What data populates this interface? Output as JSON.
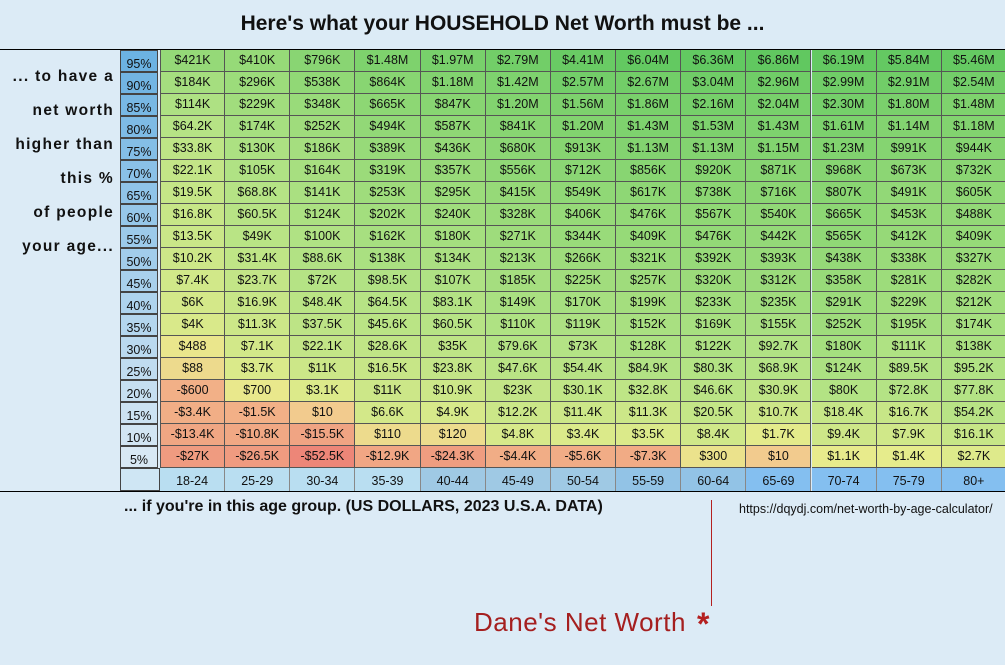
{
  "title": "Here's what your HOUSEHOLD Net Worth must be ...",
  "left_label": [
    "... to have a",
    "net worth",
    "higher than",
    "this %",
    "of people",
    "your age..."
  ],
  "bottom_label": "... if you're in this age group. (US DOLLARS, 2023 U.S.A. DATA)",
  "source": "https://dqydj.com/net-worth-by-age-calculator/",
  "marker": {
    "label": "Dane's Net Worth",
    "symbol": "*",
    "age_group": "60-64",
    "color": "#b42020"
  },
  "chart_data": {
    "type": "table",
    "title": "Here's what your HOUSEHOLD Net Worth must be ...",
    "columns": [
      "18-24",
      "25-29",
      "30-34",
      "35-39",
      "40-44",
      "45-49",
      "50-54",
      "55-59",
      "60-64",
      "65-69",
      "70-74",
      "75-79",
      "80+"
    ],
    "rows": [
      {
        "pct": "95%",
        "values": [
          "$421K",
          "$410K",
          "$796K",
          "$1.48M",
          "$1.97M",
          "$2.79M",
          "$4.41M",
          "$6.04M",
          "$6.36M",
          "$6.86M",
          "$6.19M",
          "$5.84M",
          "$5.46M"
        ]
      },
      {
        "pct": "90%",
        "values": [
          "$184K",
          "$296K",
          "$538K",
          "$864K",
          "$1.18M",
          "$1.42M",
          "$2.57M",
          "$2.67M",
          "$3.04M",
          "$2.96M",
          "$2.99M",
          "$2.91M",
          "$2.54M"
        ]
      },
      {
        "pct": "85%",
        "values": [
          "$114K",
          "$229K",
          "$348K",
          "$665K",
          "$847K",
          "$1.20M",
          "$1.56M",
          "$1.86M",
          "$2.16M",
          "$2.04M",
          "$2.30M",
          "$1.80M",
          "$1.48M"
        ]
      },
      {
        "pct": "80%",
        "values": [
          "$64.2K",
          "$174K",
          "$252K",
          "$494K",
          "$587K",
          "$841K",
          "$1.20M",
          "$1.43M",
          "$1.53M",
          "$1.43M",
          "$1.61M",
          "$1.14M",
          "$1.18M"
        ]
      },
      {
        "pct": "75%",
        "values": [
          "$33.8K",
          "$130K",
          "$186K",
          "$389K",
          "$436K",
          "$680K",
          "$913K",
          "$1.13M",
          "$1.13M",
          "$1.15M",
          "$1.23M",
          "$991K",
          "$944K"
        ]
      },
      {
        "pct": "70%",
        "values": [
          "$22.1K",
          "$105K",
          "$164K",
          "$319K",
          "$357K",
          "$556K",
          "$712K",
          "$856K",
          "$920K",
          "$871K",
          "$968K",
          "$673K",
          "$732K"
        ]
      },
      {
        "pct": "65%",
        "values": [
          "$19.5K",
          "$68.8K",
          "$141K",
          "$253K",
          "$295K",
          "$415K",
          "$549K",
          "$617K",
          "$738K",
          "$716K",
          "$807K",
          "$491K",
          "$605K"
        ]
      },
      {
        "pct": "60%",
        "values": [
          "$16.8K",
          "$60.5K",
          "$124K",
          "$202K",
          "$240K",
          "$328K",
          "$406K",
          "$476K",
          "$567K",
          "$540K",
          "$665K",
          "$453K",
          "$488K"
        ]
      },
      {
        "pct": "55%",
        "values": [
          "$13.5K",
          "$49K",
          "$100K",
          "$162K",
          "$180K",
          "$271K",
          "$344K",
          "$409K",
          "$476K",
          "$442K",
          "$565K",
          "$412K",
          "$409K"
        ]
      },
      {
        "pct": "50%",
        "values": [
          "$10.2K",
          "$31.4K",
          "$88.6K",
          "$138K",
          "$134K",
          "$213K",
          "$266K",
          "$321K",
          "$392K",
          "$393K",
          "$438K",
          "$338K",
          "$327K"
        ]
      },
      {
        "pct": "45%",
        "values": [
          "$7.4K",
          "$23.7K",
          "$72K",
          "$98.5K",
          "$107K",
          "$185K",
          "$225K",
          "$257K",
          "$320K",
          "$312K",
          "$358K",
          "$281K",
          "$282K"
        ]
      },
      {
        "pct": "40%",
        "values": [
          "$6K",
          "$16.9K",
          "$48.4K",
          "$64.5K",
          "$83.1K",
          "$149K",
          "$170K",
          "$199K",
          "$233K",
          "$235K",
          "$291K",
          "$229K",
          "$212K"
        ]
      },
      {
        "pct": "35%",
        "values": [
          "$4K",
          "$11.3K",
          "$37.5K",
          "$45.6K",
          "$60.5K",
          "$110K",
          "$119K",
          "$152K",
          "$169K",
          "$155K",
          "$252K",
          "$195K",
          "$174K"
        ]
      },
      {
        "pct": "30%",
        "values": [
          "$488",
          "$7.1K",
          "$22.1K",
          "$28.6K",
          "$35K",
          "$79.6K",
          "$73K",
          "$128K",
          "$122K",
          "$92.7K",
          "$180K",
          "$111K",
          "$138K"
        ]
      },
      {
        "pct": "25%",
        "values": [
          "$88",
          "$3.7K",
          "$11K",
          "$16.5K",
          "$23.8K",
          "$47.6K",
          "$54.4K",
          "$84.9K",
          "$80.3K",
          "$68.9K",
          "$124K",
          "$89.5K",
          "$95.2K"
        ]
      },
      {
        "pct": "20%",
        "values": [
          "-$600",
          "$700",
          "$3.1K",
          "$11K",
          "$10.9K",
          "$23K",
          "$30.1K",
          "$32.8K",
          "$46.6K",
          "$30.9K",
          "$80K",
          "$72.8K",
          "$77.8K"
        ]
      },
      {
        "pct": "15%",
        "values": [
          "-$3.4K",
          "-$1.5K",
          "$10",
          "$6.6K",
          "$4.9K",
          "$12.2K",
          "$11.4K",
          "$11.3K",
          "$20.5K",
          "$10.7K",
          "$18.4K",
          "$16.7K",
          "$54.2K"
        ]
      },
      {
        "pct": "10%",
        "values": [
          "-$13.4K",
          "-$10.8K",
          "-$15.5K",
          "$110",
          "$120",
          "$4.8K",
          "$3.4K",
          "$3.5K",
          "$8.4K",
          "$1.7K",
          "$9.4K",
          "$7.9K",
          "$16.1K"
        ]
      },
      {
        "pct": "5%",
        "values": [
          "-$27K",
          "-$26.5K",
          "-$52.5K",
          "-$12.9K",
          "-$24.3K",
          "-$4.4K",
          "-$5.6K",
          "-$7.3K",
          "$300",
          "$10",
          "$1.1K",
          "$1.4K",
          "$2.7K"
        ]
      }
    ]
  }
}
